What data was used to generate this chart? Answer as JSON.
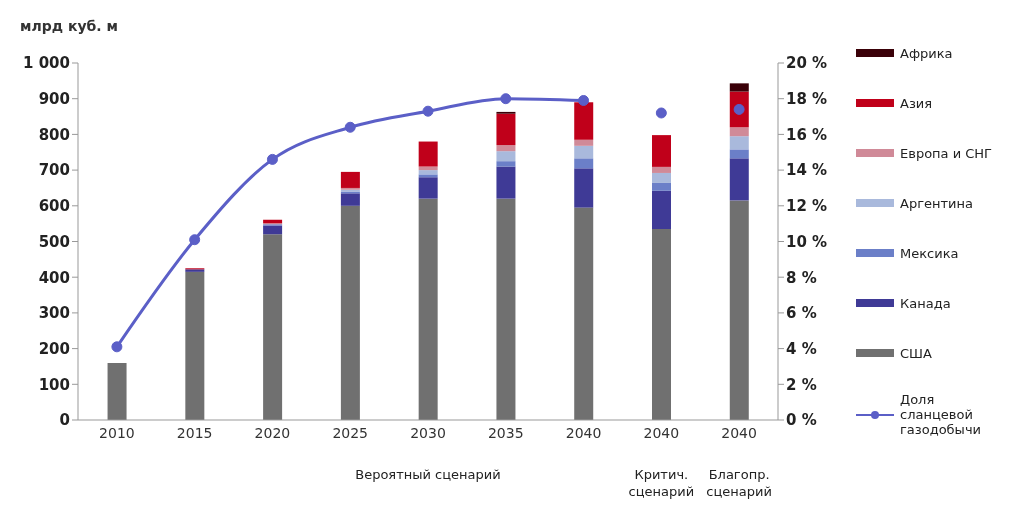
{
  "chart_data": {
    "type": "bar",
    "stacked": true,
    "ylabel": "млрд куб. м",
    "categories": [
      "2010",
      "2015",
      "2020",
      "2025",
      "2030",
      "2035",
      "2040",
      "2040",
      "2040"
    ],
    "series": [
      {
        "name": "США",
        "color": "#707070",
        "values": [
          160,
          415,
          520,
          600,
          620,
          620,
          595,
          535,
          615
        ]
      },
      {
        "name": "Канада",
        "color": "#3f3a96",
        "values": [
          0,
          7,
          25,
          35,
          60,
          90,
          110,
          107,
          118
        ]
      },
      {
        "name": "Мексика",
        "color": "#6b7fc8",
        "values": [
          0,
          0,
          3,
          5,
          8,
          15,
          28,
          22,
          25
        ]
      },
      {
        "name": "Аргентина",
        "color": "#a9b9dc",
        "values": [
          0,
          0,
          null,
          5,
          12,
          28,
          35,
          28,
          37
        ]
      },
      {
        "name": "Европа и СНГ",
        "color": "#d08a98",
        "values": [
          0,
          0,
          3,
          5,
          10,
          17,
          17,
          17,
          25
        ]
      },
      {
        "name": "Азия",
        "color": "#c0001a",
        "values": [
          0,
          3,
          10,
          45,
          70,
          88,
          105,
          89,
          100
        ]
      },
      {
        "name": "Африка",
        "color": "#3a0008",
        "values": [
          0,
          0,
          0,
          0,
          0,
          5,
          null,
          0,
          23
        ]
      },
      {
        "name": "Доля сланцевой газодобычи",
        "type": "line",
        "axis": "y2",
        "color": "#5b5fc7",
        "values": [
          4.1,
          10.1,
          14.6,
          16.4,
          17.3,
          18.0,
          17.9,
          null,
          null
        ]
      },
      {
        "type": "scatter",
        "axis": "y2",
        "color": "#5b5fc7",
        "values": [
          null,
          null,
          null,
          null,
          null,
          null,
          null,
          17.2,
          17.4
        ]
      }
    ],
    "ylim": [
      0,
      1000
    ],
    "yticks": [
      0,
      100,
      200,
      300,
      400,
      500,
      600,
      700,
      800,
      900,
      {
        "value": 1000,
        "label": "1 000"
      }
    ],
    "y2lim": [
      0,
      20
    ],
    "y2ticks": [
      {
        "value": 0,
        "label": "0 %"
      },
      {
        "value": 2,
        "label": "2 %"
      },
      {
        "value": 4,
        "label": "4 %"
      },
      {
        "value": 6,
        "label": "6 %"
      },
      {
        "value": 8,
        "label": "8 %"
      },
      {
        "value": 10,
        "label": "10 %"
      },
      {
        "value": 12,
        "label": "12 %"
      },
      {
        "value": 14,
        "label": "14 %"
      },
      {
        "value": 16,
        "label": "16 %"
      },
      {
        "value": 18,
        "label": "18 %"
      },
      {
        "value": 20,
        "label": "20 %"
      }
    ],
    "annotations": [
      "Вероятный сценарий",
      "Критич. сценарий",
      "Благопр. сценарий"
    ],
    "grid": false,
    "legend": "right",
    "marker": "circle",
    "line_style": "solid"
  }
}
